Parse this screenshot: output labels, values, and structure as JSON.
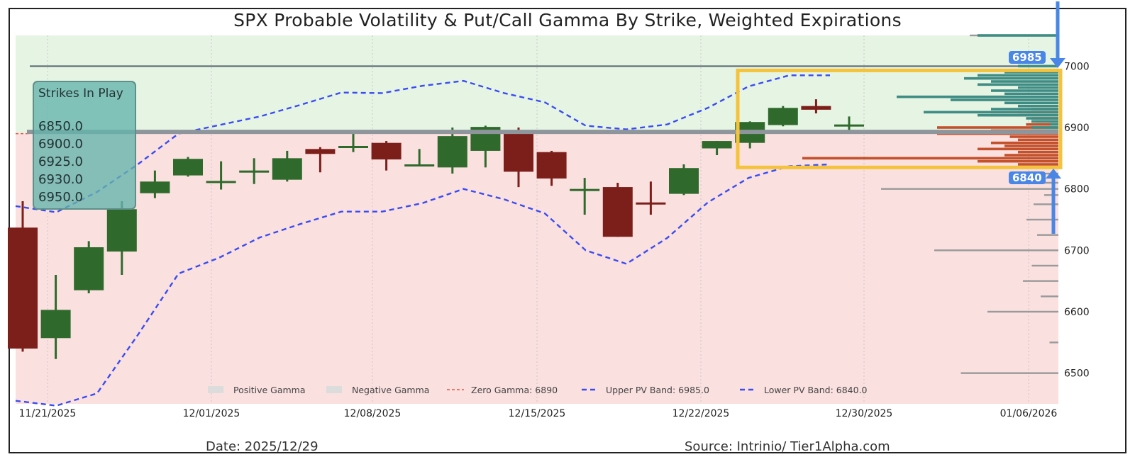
{
  "title": "SPX Probable Volatility & Put/Call Gamma By Strike, Weighted Expirations",
  "footer": {
    "date": "Date: 2025/12/29",
    "source": "Source: Intrinio/ Tier1Alpha.com"
  },
  "strikes_box": {
    "title": "Strikes In Play",
    "items": [
      "6850.0",
      "6900.0",
      "6925.0",
      "6930.0",
      "6950.0"
    ]
  },
  "annotations": {
    "upper_label": "6985",
    "lower_label": "6840"
  },
  "colors": {
    "up_candle": "#2f6a2c",
    "down_candle": "#7c1f1a",
    "pv_band": "#3a4cf2",
    "zero_gamma": "#e2584a",
    "positive_zone": "#e6f4e4",
    "negative_zone": "#fae0df",
    "highlight_box": "#f5c33b",
    "callout": "#4a86e6",
    "call_gamma_bar": "#3f8c84",
    "put_gamma_bar": "#c2512c",
    "gamma_bar_grey": "#9a9a9a",
    "strike_line": "#8e959b"
  },
  "chart_data": {
    "type": "candlestick",
    "title": "SPX Probable Volatility & Put/Call Gamma By Strike, Weighted Expirations",
    "xlabel": "",
    "ylabel": "",
    "ylim": [
      6450,
      7050
    ],
    "y_ticks": [
      6500,
      6600,
      6700,
      6800,
      6900,
      7000
    ],
    "x_tick_labels": [
      "11/21/2025",
      "12/01/2025",
      "12/08/2025",
      "12/15/2025",
      "12/22/2025",
      "12/30/2025",
      "01/06/2026"
    ],
    "grid": true,
    "legend_position": "bottom",
    "legend": [
      "Positive Gamma",
      "Negative Gamma",
      "Zero Gamma: 6890",
      "Upper PV Band: 6985.0",
      "Lower PV Band: 6840.0"
    ],
    "zero_gamma": 6890,
    "upper_pv_band_level": 6985.0,
    "lower_pv_band_level": 6840.0,
    "horizontal_line_level": 7000,
    "strike_line_level": 6893,
    "ohlc": [
      {
        "date": "11/20/2025",
        "open": 6737,
        "high": 6780,
        "low": 6535,
        "close": 6540
      },
      {
        "date": "11/21/2025",
        "open": 6557,
        "high": 6660,
        "low": 6523,
        "close": 6603
      },
      {
        "date": "11/24/2025",
        "open": 6635,
        "high": 6715,
        "low": 6630,
        "close": 6705
      },
      {
        "date": "11/25/2025",
        "open": 6698,
        "high": 6780,
        "low": 6660,
        "close": 6767
      },
      {
        "date": "11/26/2025",
        "open": 6793,
        "high": 6830,
        "low": 6785,
        "close": 6812
      },
      {
        "date": "11/28/2025",
        "open": 6822,
        "high": 6852,
        "low": 6820,
        "close": 6849
      },
      {
        "date": "12/01/2025",
        "open": 6812,
        "high": 6845,
        "low": 6799,
        "close": 6813
      },
      {
        "date": "12/02/2025",
        "open": 6830,
        "high": 6850,
        "low": 6808,
        "close": 6830
      },
      {
        "date": "12/03/2025",
        "open": 6815,
        "high": 6862,
        "low": 6812,
        "close": 6850
      },
      {
        "date": "12/04/2025",
        "open": 6865,
        "high": 6868,
        "low": 6827,
        "close": 6857
      },
      {
        "date": "12/05/2025",
        "open": 6867,
        "high": 6895,
        "low": 6860,
        "close": 6870
      },
      {
        "date": "12/08/2025",
        "open": 6875,
        "high": 6878,
        "low": 6830,
        "close": 6848
      },
      {
        "date": "12/09/2025",
        "open": 6840,
        "high": 6865,
        "low": 6838,
        "close": 6840
      },
      {
        "date": "12/10/2025",
        "open": 6835,
        "high": 6900,
        "low": 6825,
        "close": 6886
      },
      {
        "date": "12/11/2025",
        "open": 6862,
        "high": 6903,
        "low": 6835,
        "close": 6901
      },
      {
        "date": "12/12/2025",
        "open": 6890,
        "high": 6900,
        "low": 6803,
        "close": 6828
      },
      {
        "date": "12/15/2025",
        "open": 6860,
        "high": 6862,
        "low": 6805,
        "close": 6817
      },
      {
        "date": "12/16/2025",
        "open": 6800,
        "high": 6818,
        "low": 6758,
        "close": 6800
      },
      {
        "date": "12/17/2025",
        "open": 6803,
        "high": 6810,
        "low": 6722,
        "close": 6722
      },
      {
        "date": "12/18/2025",
        "open": 6778,
        "high": 6812,
        "low": 6758,
        "close": 6775
      },
      {
        "date": "12/19/2025",
        "open": 6792,
        "high": 6840,
        "low": 6790,
        "close": 6834
      },
      {
        "date": "12/22/2025",
        "open": 6866,
        "high": 6878,
        "low": 6855,
        "close": 6878
      },
      {
        "date": "12/23/2025",
        "open": 6875,
        "high": 6910,
        "low": 6866,
        "close": 6909
      },
      {
        "date": "12/24/2025",
        "open": 6904,
        "high": 6935,
        "low": 6902,
        "close": 6932
      },
      {
        "date": "12/26/2025",
        "open": 6935,
        "high": 6946,
        "low": 6923,
        "close": 6929
      },
      {
        "date": "12/29/2025",
        "open": 6905,
        "high": 6918,
        "low": 6890,
        "close": 6905
      }
    ],
    "upper_pv_band": [
      6772,
      6762,
      6795,
      6840,
      6890,
      6904,
      6918,
      6937,
      6957,
      6956,
      6968,
      6976,
      6956,
      6941,
      6903,
      6897,
      6905,
      6932,
      6967,
      6985,
      6985
    ],
    "lower_pv_band": [
      6455,
      6447,
      6467,
      6562,
      6662,
      6688,
      6721,
      6743,
      6763,
      6763,
      6777,
      6800,
      6783,
      6760,
      6700,
      6678,
      6720,
      6778,
      6818,
      6837,
      6840
    ],
    "gamma_by_strike": {
      "strikes": [
        6500,
        6550,
        6600,
        6625,
        6650,
        6675,
        6700,
        6725,
        6750,
        6775,
        6790,
        6800,
        6810,
        6825,
        6835,
        6840,
        6845,
        6850,
        6855,
        6860,
        6865,
        6870,
        6875,
        6880,
        6885,
        6890,
        6895,
        6900,
        6905,
        6910,
        6915,
        6920,
        6925,
        6930,
        6935,
        6940,
        6945,
        6950,
        6955,
        6960,
        6965,
        6970,
        6975,
        6980,
        6985,
        6990,
        7000,
        7050
      ],
      "call_gamma": [
        0,
        0,
        0,
        0,
        0,
        0,
        0,
        0,
        0,
        0,
        0,
        0,
        0,
        0,
        0,
        0,
        0,
        0,
        0,
        0,
        0,
        0,
        0,
        0,
        0,
        0,
        0.05,
        0.1,
        0.03,
        0.1,
        0.12,
        0.3,
        0.5,
        0.25,
        0.15,
        0.2,
        0.4,
        0.6,
        0.2,
        0.25,
        0.15,
        0.3,
        0.25,
        0.35,
        0.3,
        0.2,
        0.15,
        0.3
      ],
      "put_gamma": [
        0,
        0,
        0,
        0,
        0,
        0,
        0,
        0,
        0,
        0,
        0,
        0,
        0,
        0,
        0.1,
        0.15,
        0.3,
        0.95,
        0.2,
        0.15,
        0.3,
        0.2,
        0.25,
        0.15,
        0.18,
        0.45,
        0.25,
        0.45,
        0.12,
        0.08,
        0.1,
        0.25,
        0.15,
        0.1,
        0,
        0,
        0,
        0,
        0,
        0,
        0,
        0,
        0,
        0,
        0,
        0,
        0,
        0
      ],
      "grey_gamma": [
        0.55,
        0.05,
        0.4,
        0.1,
        0.2,
        0.15,
        0.7,
        0.12,
        0.18,
        0.14,
        0.08,
        1.0,
        0.25,
        0.08,
        0.05,
        0.03,
        0,
        0,
        0,
        0,
        0,
        0,
        0,
        0,
        0,
        0,
        0,
        0,
        0,
        0,
        0,
        0,
        0,
        0,
        0,
        0,
        0,
        0,
        0,
        0,
        0,
        0,
        0,
        0,
        0,
        0,
        0.1,
        0.5
      ]
    }
  }
}
